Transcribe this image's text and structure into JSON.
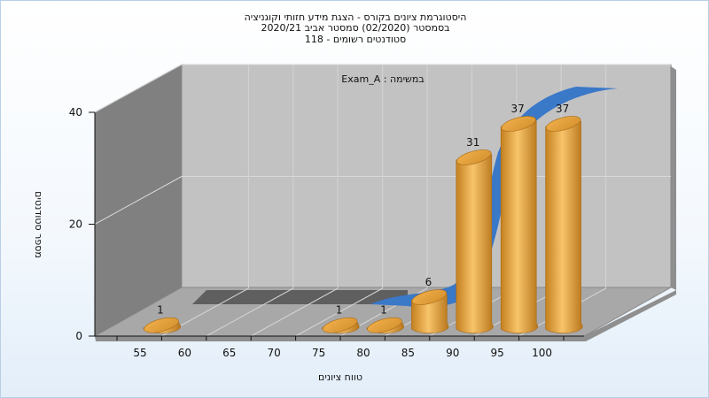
{
  "title_lines": [
    "היסטוגרמת ציונים בקורס - הצגת מידע חזותי וקוגניציה",
    "בסמסטר  (02/2020)  סמסטר אביב 2020/21",
    "סטודנטים רשומים - 118"
  ],
  "colors": {
    "bar": "#e8a33f",
    "curve": "#3a78c8",
    "wall": "#c0c0c0",
    "side_wall": "#7e7e7e",
    "floor": "#a9a9a9"
  },
  "chart_data": {
    "type": "bar",
    "title": "היסטוגרמת ציונים בקורס - הצגת מידע חזותי וקוגניציה",
    "subtitle": "בסמסטר  (02/2020)  סמסטר אביב 2020/21 | סטודנטים רשומים - 118",
    "annotation": "Exam_A : במשימה",
    "categories": [
      "55",
      "60",
      "65",
      "70",
      "75",
      "80",
      "85",
      "90",
      "95",
      "100"
    ],
    "values": [
      1,
      0,
      0,
      0,
      1,
      1,
      6,
      31,
      37,
      37
    ],
    "data_labels": [
      "1",
      "",
      "",
      "",
      "1",
      "1",
      "6",
      "31",
      "37",
      "37"
    ],
    "xlabel": "טווח ציונים",
    "ylabel": "מספר סטודנטים",
    "yticks": [
      "0",
      "20",
      "40"
    ],
    "ylim": [
      0,
      40
    ],
    "grid": true,
    "legend": "none",
    "three_d": true,
    "curve": "cumulative-trend"
  }
}
